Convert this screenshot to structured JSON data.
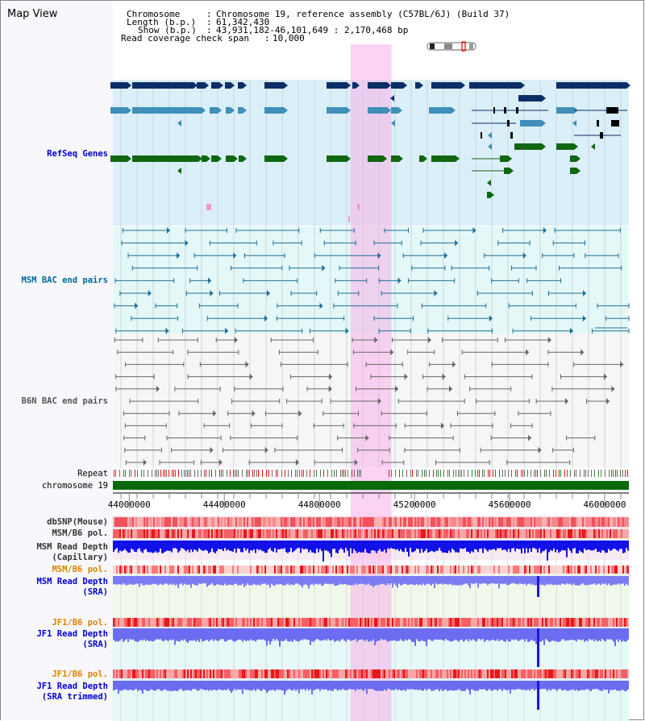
{
  "page": {
    "title": "Map View"
  },
  "info": {
    "chromosome_label": "Chromosome",
    "chromosome_value": "Chromosome 19, reference assembly (C57BL/6J) (Build 37)",
    "length_label": "Length (b.p.)",
    "length_value": "61,342,430",
    "show_label": "Show (b.p.)",
    "show_value": "43,931,182-46,101,649 : 2,170,468 bp",
    "coverage_label": "Read coverage check span",
    "coverage_value": "10,000"
  },
  "region": {
    "start": 43931182,
    "end": 46101649
  },
  "highlight": {
    "start": 44931000,
    "end": 45103000
  },
  "tracks": [
    {
      "id": "refseq",
      "label": "RefSeq Genes",
      "color": "#0000cc"
    },
    {
      "id": "msm-bac",
      "label": "MSM BAC end pairs",
      "color": "#006699"
    },
    {
      "id": "b6n-bac",
      "label": "B6N BAC end pairs",
      "color": "#555555"
    },
    {
      "id": "repeat",
      "label": "Repeat",
      "color": "#000000"
    },
    {
      "id": "chromosome",
      "label": "chromosome 19",
      "color": "#000000"
    }
  ],
  "axis": {
    "ticks": [
      44000000,
      44400000,
      44800000,
      45200000,
      45600000,
      46000000
    ]
  },
  "lower_tracks": [
    {
      "id": "dbsnp",
      "lines": [
        "dbSNP(Mouse)"
      ],
      "color": "#333333"
    },
    {
      "id": "msm-b6-pol-1",
      "lines": [
        "MSM/B6 pol."
      ],
      "color": "#333333"
    },
    {
      "id": "msm-depth-cap",
      "lines": [
        "MSM Read Depth",
        "(Capillary)"
      ],
      "color": "#333333"
    },
    {
      "id": "msm-b6-pol-2",
      "lines": [
        "MSM/B6 pol."
      ],
      "color": "#e08000"
    },
    {
      "id": "msm-depth-sra",
      "lines": [
        "MSM Read Depth",
        "(SRA)"
      ],
      "color": "#0000cc"
    },
    {
      "id": "jf1-b6-pol-1",
      "lines": [
        "JF1/B6 pol."
      ],
      "color": "#e08000"
    },
    {
      "id": "jf1-depth-sra",
      "lines": [
        "JF1 Read Depth",
        "(SRA)"
      ],
      "color": "#0000cc"
    },
    {
      "id": "jf1-b6-pol-2",
      "lines": [
        "JF1/B6 pol."
      ],
      "color": "#e08000"
    },
    {
      "id": "jf1-depth-trim",
      "lines": [
        "JF1 Read Depth",
        "(SRA trimmed)"
      ],
      "color": "#0000cc"
    }
  ]
}
